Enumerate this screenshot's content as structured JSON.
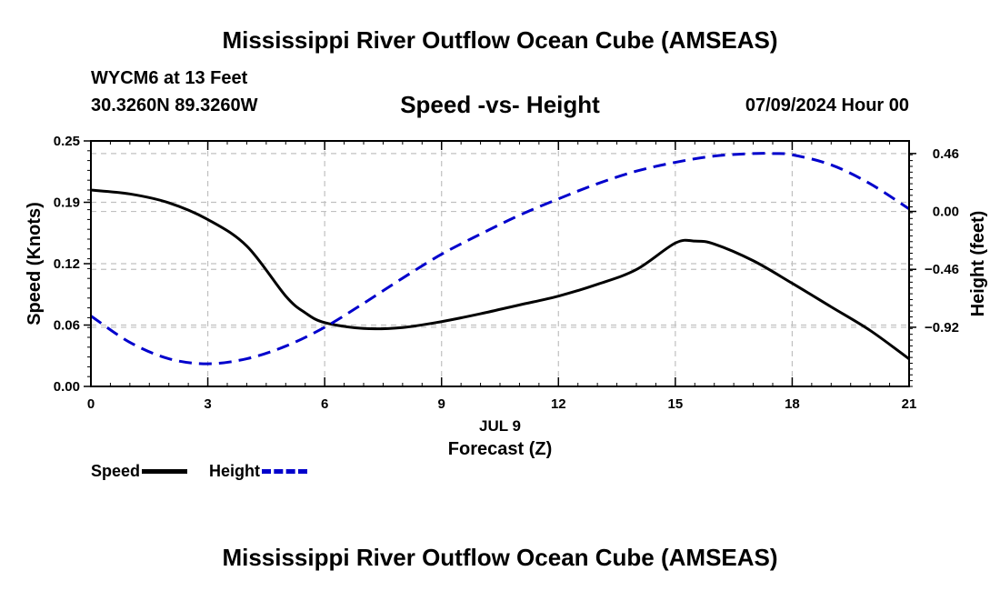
{
  "header": {
    "title": "Mississippi River Outflow Ocean Cube (AMSEAS)",
    "station": "WYCM6 at 13 Feet",
    "coords": "30.3260N  89.3260W",
    "subtitle": "Speed -vs- Height",
    "datetime": "07/09/2024 Hour 00"
  },
  "footer": {
    "title": "Mississippi River Outflow Ocean Cube (AMSEAS)"
  },
  "legend": {
    "speed_label": "Speed",
    "height_label": "Height"
  },
  "chart_data": {
    "type": "line",
    "title": "Speed -vs- Height",
    "xlabel": "Forecast (Z)",
    "xsublabel": "JUL 9",
    "ylabel": "Speed (Knots)",
    "y2label": "Height (feet)",
    "xlim": [
      0,
      21
    ],
    "ylim": [
      0,
      0.25
    ],
    "y2lim": [
      -1.39,
      0.56
    ],
    "xticks": [
      0,
      3,
      6,
      9,
      12,
      15,
      18,
      21
    ],
    "xtick_labels": [
      "0",
      "3",
      "6",
      "9",
      "12",
      "15",
      "18",
      "21"
    ],
    "yticks": [
      0.0,
      0.0625,
      0.125,
      0.1875,
      0.25
    ],
    "ytick_labels": [
      "0.00",
      "0.06",
      "0.12",
      "0.19",
      "0.25"
    ],
    "y2ticks": [
      -0.92,
      -0.46,
      0.0,
      0.46
    ],
    "y2tick_labels": [
      "−0.92",
      "−0.46",
      "0.00",
      "0.46"
    ],
    "grid": true,
    "colors": {
      "speed": "#000000",
      "height": "#0000cc",
      "grid": "#c0c0c0"
    },
    "series": [
      {
        "name": "Speed",
        "axis": "left",
        "style": "solid",
        "x": [
          0,
          1,
          2,
          3,
          4,
          5,
          5.5,
          6,
          7,
          8,
          9,
          10,
          11,
          12,
          13,
          14,
          15,
          15.5,
          16,
          17,
          18,
          19,
          20,
          21
        ],
        "values": [
          0.2,
          0.196,
          0.187,
          0.17,
          0.143,
          0.092,
          0.075,
          0.065,
          0.059,
          0.06,
          0.066,
          0.074,
          0.083,
          0.092,
          0.104,
          0.119,
          0.146,
          0.148,
          0.145,
          0.128,
          0.105,
          0.081,
          0.057,
          0.028
        ]
      },
      {
        "name": "Height",
        "axis": "right",
        "style": "dashed",
        "x": [
          0,
          1,
          2,
          3,
          4,
          5,
          6,
          7,
          8,
          9,
          10,
          11,
          12,
          13,
          14,
          15,
          16,
          17,
          17.5,
          18,
          19,
          20,
          21
        ],
        "values": [
          -0.83,
          -1.04,
          -1.17,
          -1.21,
          -1.17,
          -1.07,
          -0.92,
          -0.73,
          -0.53,
          -0.34,
          -0.18,
          -0.03,
          0.1,
          0.22,
          0.32,
          0.39,
          0.44,
          0.46,
          0.46,
          0.45,
          0.37,
          0.22,
          0.02
        ]
      }
    ]
  }
}
